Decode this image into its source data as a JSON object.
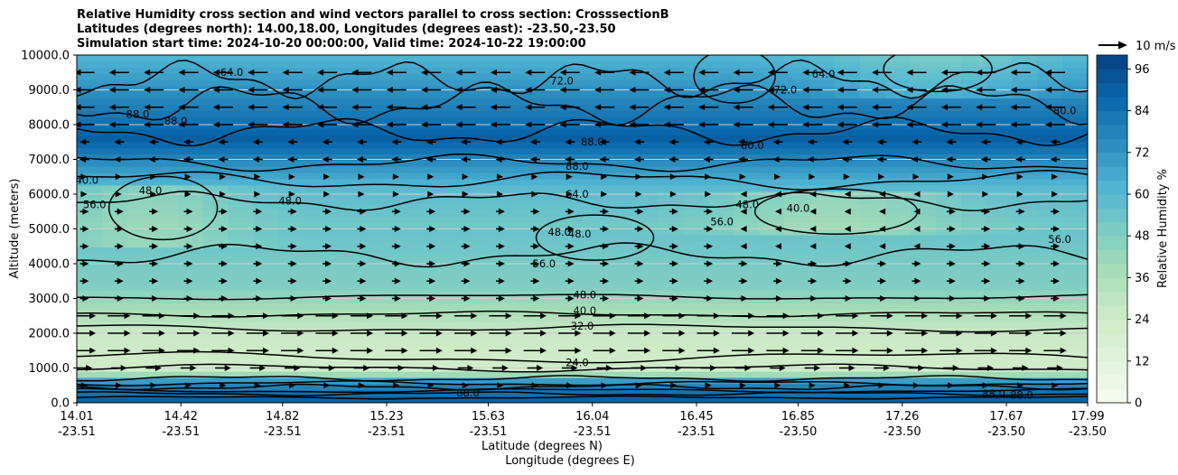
{
  "title_lines": [
    "Relative Humidity cross section and wind vectors parallel to cross section: CrosssectionB",
    "Latitudes (degrees north): 14.00,18.00, Longitudes (degrees east): -23.50,-23.50",
    "Simulation start time: 2024-10-20 00:00:00, Valid time: 2024-10-22 19:00:00"
  ],
  "chart_data": {
    "type": "heatmap",
    "ylabel": "Altitude (meters)",
    "xlabel_line1": "Latitude (degrees N)",
    "xlabel_line2": "Longitude (degrees E)",
    "ylim": [
      0,
      10000
    ],
    "yticks": [
      "0.0",
      "1000.0",
      "2000.0",
      "3000.0",
      "4000.0",
      "5000.0",
      "6000.0",
      "7000.0",
      "8000.0",
      "9000.0",
      "10000.0"
    ],
    "xticks": [
      {
        "lat": "14.01",
        "lon": "-23.51"
      },
      {
        "lat": "14.42",
        "lon": "-23.51"
      },
      {
        "lat": "14.82",
        "lon": "-23.51"
      },
      {
        "lat": "15.23",
        "lon": "-23.51"
      },
      {
        "lat": "15.63",
        "lon": "-23.51"
      },
      {
        "lat": "16.04",
        "lon": "-23.51"
      },
      {
        "lat": "16.45",
        "lon": "-23.51"
      },
      {
        "lat": "16.85",
        "lon": "-23.50"
      },
      {
        "lat": "17.26",
        "lon": "-23.50"
      },
      {
        "lat": "17.67",
        "lon": "-23.50"
      },
      {
        "lat": "17.99",
        "lon": "-23.50"
      }
    ],
    "grid": "horizontal",
    "colorbar": {
      "label": "Relative Humidity %",
      "ticks": [
        "0",
        "12",
        "24",
        "36",
        "48",
        "60",
        "72",
        "84",
        "96"
      ],
      "range": [
        0,
        100
      ]
    },
    "quiver_key": "10 m/s",
    "contour_labels": [
      {
        "text": "88.0",
        "lat": 14.4,
        "alt": 8000
      },
      {
        "text": "64.0",
        "lat": 14.62,
        "alt": 9400
      },
      {
        "text": "72.0",
        "lat": 15.92,
        "alt": 9150
      },
      {
        "text": "72.0",
        "lat": 16.8,
        "alt": 8900
      },
      {
        "text": "64.0",
        "lat": 16.95,
        "alt": 9350
      },
      {
        "text": "88.0",
        "lat": 16.04,
        "alt": 7400
      },
      {
        "text": "80.0",
        "lat": 16.67,
        "alt": 7300
      },
      {
        "text": "88.0",
        "lat": 15.98,
        "alt": 6700
      },
      {
        "text": "64.0",
        "lat": 15.98,
        "alt": 5900
      },
      {
        "text": "48.0",
        "lat": 15.91,
        "alt": 4800
      },
      {
        "text": "48.0",
        "lat": 15.99,
        "alt": 4750
      },
      {
        "text": "56.0",
        "lat": 15.85,
        "alt": 3900
      },
      {
        "text": "48.0",
        "lat": 16.01,
        "alt": 3000
      },
      {
        "text": "40.0",
        "lat": 16.01,
        "alt": 2550
      },
      {
        "text": "32.0",
        "lat": 16.0,
        "alt": 2100
      },
      {
        "text": "24.0",
        "lat": 15.98,
        "alt": 1050
      },
      {
        "text": "80.0",
        "lat": 17.9,
        "alt": 8300
      },
      {
        "text": "88.0",
        "lat": 17.62,
        "alt": 150
      },
      {
        "text": "88.0",
        "lat": 17.73,
        "alt": 120
      },
      {
        "text": "88.0",
        "lat": 15.55,
        "alt": 180
      },
      {
        "text": "48.0",
        "lat": 14.3,
        "alt": 6000
      },
      {
        "text": "48.0",
        "lat": 14.85,
        "alt": 5700
      },
      {
        "text": "40.0",
        "lat": 14.05,
        "alt": 6300
      },
      {
        "text": "56.0",
        "lat": 14.08,
        "alt": 5600
      },
      {
        "text": "56.0",
        "lat": 16.55,
        "alt": 5100
      },
      {
        "text": "48.0",
        "lat": 16.65,
        "alt": 5600
      },
      {
        "text": "40.0",
        "lat": 16.85,
        "alt": 5500
      },
      {
        "text": "56.0",
        "lat": 17.88,
        "alt": 4600
      },
      {
        "text": "88.0",
        "lat": 14.25,
        "alt": 8200
      }
    ]
  },
  "colors": {
    "scale": [
      "#f7fcf0",
      "#e0f3db",
      "#ccebc5",
      "#a8ddb5",
      "#7bccc4",
      "#4eb3d3",
      "#2b8cbe",
      "#0868ac",
      "#084081"
    ]
  }
}
